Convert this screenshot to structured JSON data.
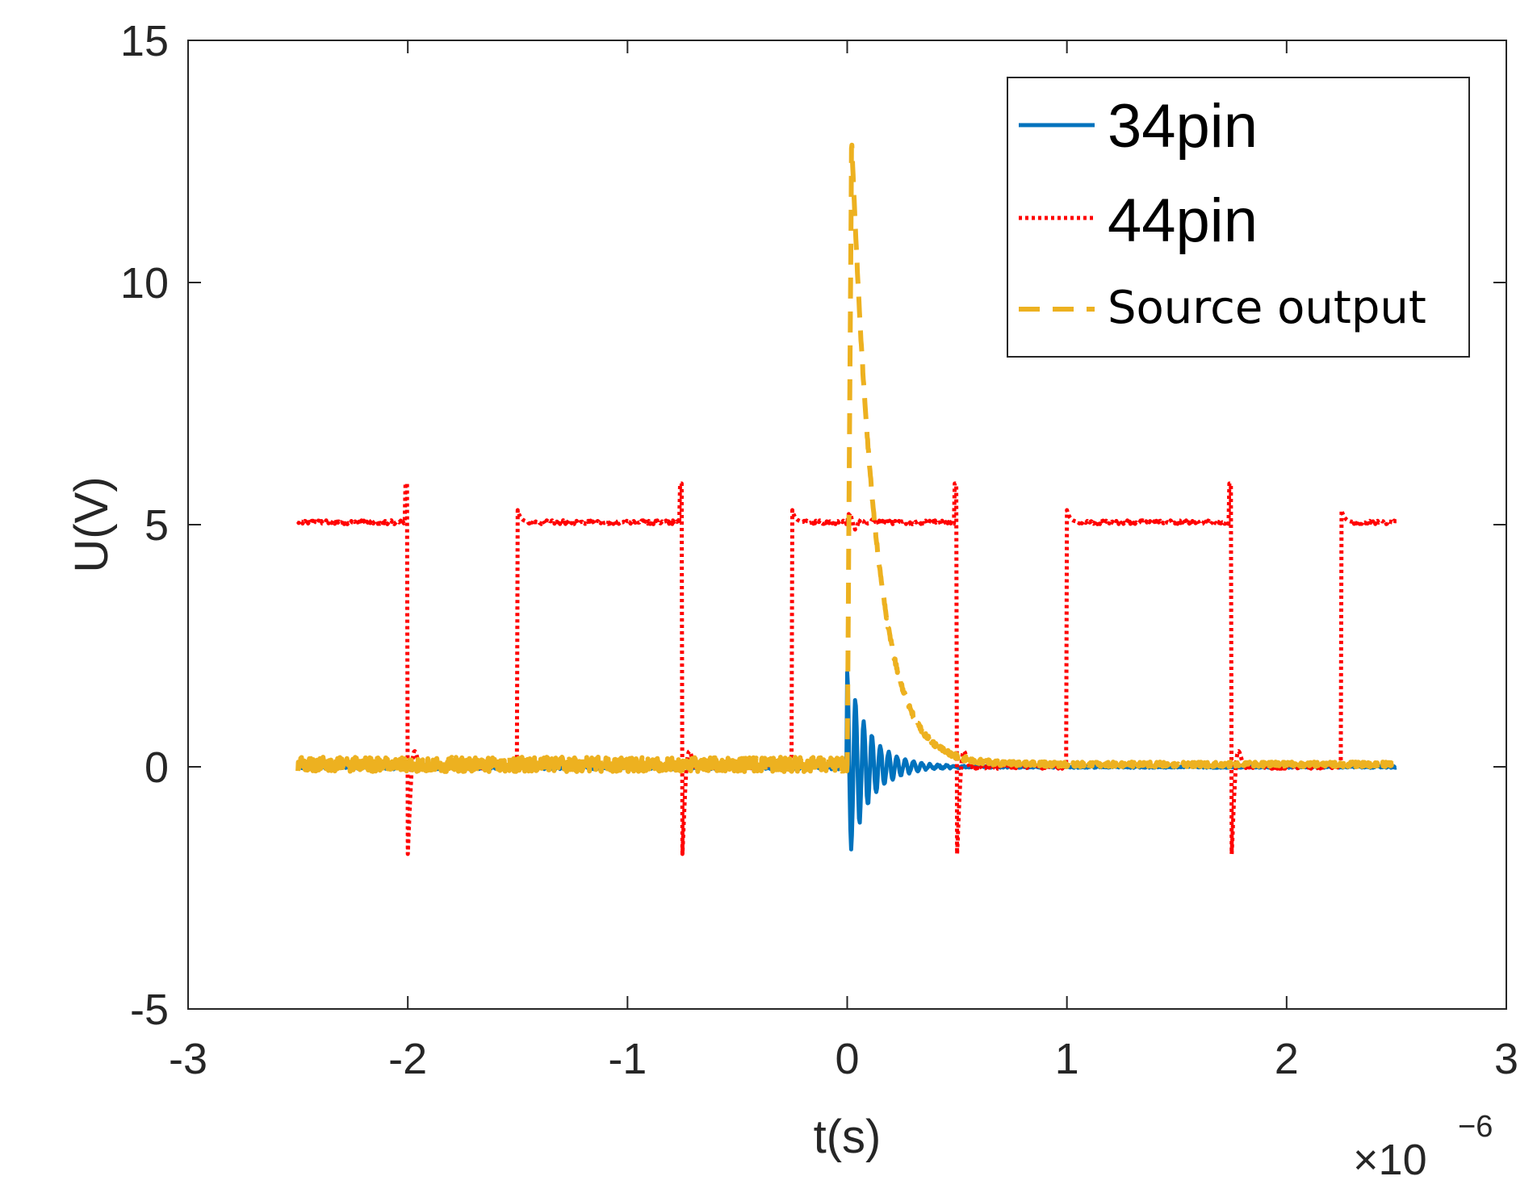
{
  "chart_data": {
    "type": "line",
    "title": "",
    "xlabel": "t(s)",
    "ylabel": "U(V)",
    "xlim": [
      -3,
      3
    ],
    "ylim": [
      -5,
      15
    ],
    "x_ticks": [
      -3,
      -2,
      -1,
      0,
      1,
      2,
      3
    ],
    "y_ticks": [
      -5,
      0,
      5,
      10,
      15
    ],
    "x_tick_labels": [
      "-3",
      "-2",
      "-1",
      "0",
      "1",
      "2",
      "3"
    ],
    "y_tick_labels": [
      "-5",
      "0",
      "5",
      "10",
      "15"
    ],
    "x_exponent_label": "×10",
    "x_exponent_power": "−6",
    "x_scale": 1e-06,
    "grid": false,
    "legend_position": "top-right",
    "series": [
      {
        "name": "34pin",
        "color": "#0072BD",
        "style": "solid",
        "description_values": {
          "baseline": 0,
          "ringing_start": 0,
          "ringing_peak_max": 2,
          "ringing_peak_min": -2,
          "ringing_decay_end": 0.5,
          "t_range": [
            -2.5,
            2.5
          ]
        }
      },
      {
        "name": "44pin",
        "color": "#FF0000",
        "style": "dotted",
        "description_values": {
          "high_level": 5.05,
          "low_level": 0,
          "t_range": [
            -2.5,
            2.5
          ],
          "falling_edges": [
            -2.0,
            -0.75,
            0.5,
            1.75
          ],
          "rising_edges": [
            -1.5,
            -0.25,
            1.0,
            2.25
          ],
          "falling_undershoot": -1.8,
          "rising_overshoot": 5.3
        }
      },
      {
        "name": "Source output",
        "color": "#EDB120",
        "style": "dashed",
        "description_values": {
          "baseline": 0.05,
          "pulse_start": 0,
          "pulse_peak": 13,
          "pulse_peak_time": 0.02,
          "decay_time_constant": 0.11,
          "t_range": [
            -2.5,
            2.5
          ]
        }
      }
    ]
  }
}
